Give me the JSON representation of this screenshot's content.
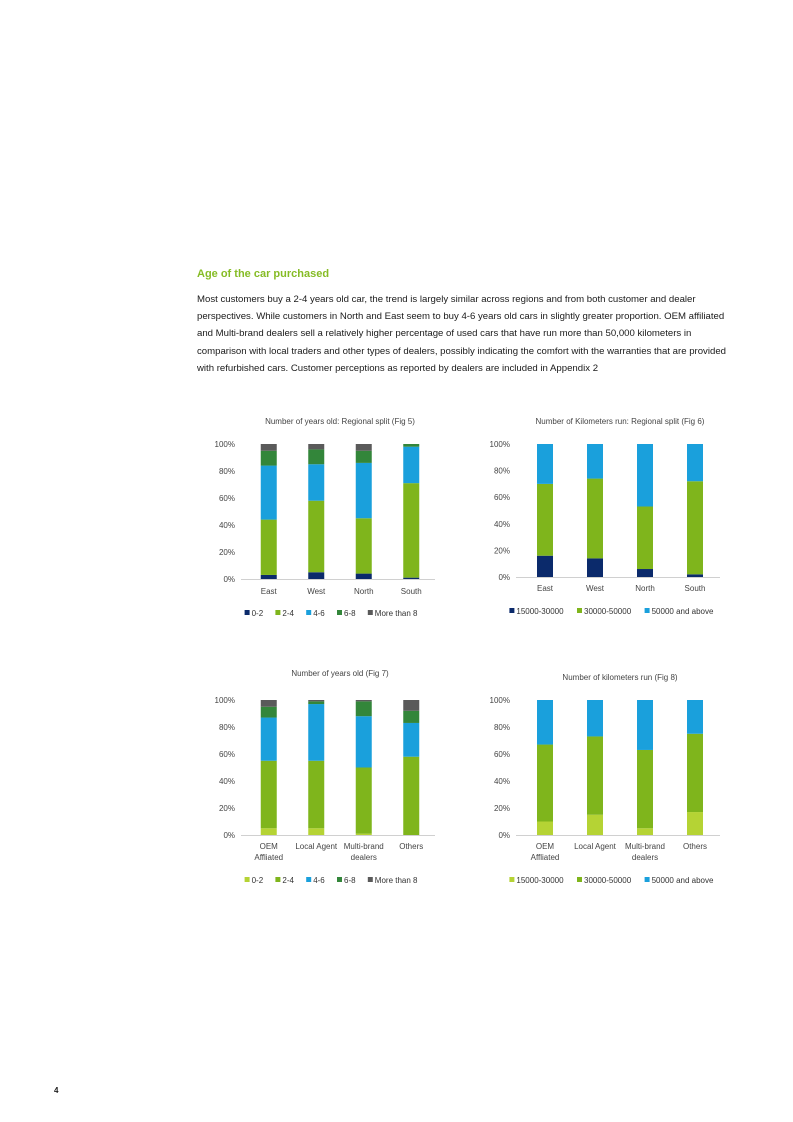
{
  "document": {
    "section_title": "Age of the car purchased",
    "paragraph": "Most customers buy a 2-4 years old car, the trend is largely similar across regions and from both customer and dealer perspectives. While customers in North and East seem to buy 4-6 years old cars in slightly greater proportion. OEM affiliated and Multi-brand dealers sell a relatively higher percentage of used cars that have run more than 50,000 kilometers in comparison with local traders and other types of dealers, possibly indicating the comfort with the warranties that are provided with refurbished cars. Customer perceptions as reported by dealers are included in Appendix 2",
    "page_number": "4"
  },
  "chart_data": [
    {
      "type": "bar",
      "stacked": true,
      "title": "Number of years old: Regional split (Fig 5)",
      "categories": [
        "East",
        "West",
        "North",
        "South"
      ],
      "y_ticks": [
        "0%",
        "20%",
        "40%",
        "60%",
        "80%",
        "100%"
      ],
      "ylim": [
        0,
        100
      ],
      "legend_position": "bottom",
      "series": [
        {
          "name": "0-2",
          "color": "#0b2a6b",
          "values": [
            3,
            5,
            4,
            1
          ]
        },
        {
          "name": "2-4",
          "color": "#7fb51c",
          "values": [
            41,
            53,
            41,
            70
          ]
        },
        {
          "name": "4-6",
          "color": "#1aa0dc",
          "values": [
            40,
            27,
            41,
            27
          ]
        },
        {
          "name": "6-8",
          "color": "#33863a",
          "values": [
            11,
            11,
            9,
            2
          ]
        },
        {
          "name": "More than 8",
          "color": "#5a5a5a",
          "values": [
            5,
            4,
            5,
            0
          ]
        }
      ]
    },
    {
      "type": "bar",
      "stacked": true,
      "title": "Number of Kilometers run: Regional split (Fig 6)",
      "categories": [
        "East",
        "West",
        "North",
        "South"
      ],
      "y_ticks": [
        "0%",
        "20%",
        "40%",
        "60%",
        "80%",
        "100%"
      ],
      "ylim": [
        0,
        100
      ],
      "legend_position": "bottom",
      "series": [
        {
          "name": "15000-30000",
          "color": "#0b2a6b",
          "values": [
            16,
            14,
            6,
            2
          ]
        },
        {
          "name": "30000-50000",
          "color": "#7fb51c",
          "values": [
            54,
            60,
            47,
            70
          ]
        },
        {
          "name": "50000 and above",
          "color": "#1aa0dc",
          "values": [
            30,
            26,
            47,
            28
          ]
        }
      ]
    },
    {
      "type": "bar",
      "stacked": true,
      "title": "Number of years old (Fig 7)",
      "categories": [
        [
          "OEM",
          "Affliated"
        ],
        [
          "Local Agent"
        ],
        [
          "Multi-brand",
          "dealers"
        ],
        [
          "Others"
        ]
      ],
      "y_ticks": [
        "0%",
        "20%",
        "40%",
        "60%",
        "80%",
        "100%"
      ],
      "ylim": [
        0,
        100
      ],
      "legend_position": "bottom",
      "series": [
        {
          "name": "0-2",
          "color": "#b5d334",
          "values": [
            5,
            5,
            1,
            0
          ]
        },
        {
          "name": "2-4",
          "color": "#7fb51c",
          "values": [
            50,
            50,
            49,
            58
          ]
        },
        {
          "name": "4-6",
          "color": "#1aa0dc",
          "values": [
            32,
            42,
            38,
            25
          ]
        },
        {
          "name": "6-8",
          "color": "#33863a",
          "values": [
            8,
            2,
            11,
            9
          ]
        },
        {
          "name": "More than 8",
          "color": "#5a5a5a",
          "values": [
            5,
            1,
            1,
            8
          ]
        }
      ]
    },
    {
      "type": "bar",
      "stacked": true,
      "title": "Number of kilometers run (Fig 8)",
      "categories": [
        [
          "OEM",
          "Affliated"
        ],
        [
          "Local Agent"
        ],
        [
          "Multi-brand",
          "dealers"
        ],
        [
          "Others"
        ]
      ],
      "y_ticks": [
        "0%",
        "20%",
        "40%",
        "60%",
        "80%",
        "100%"
      ],
      "ylim": [
        0,
        100
      ],
      "legend_position": "bottom",
      "series": [
        {
          "name": "15000-30000",
          "color": "#b5d334",
          "values": [
            10,
            15,
            5,
            17
          ]
        },
        {
          "name": "30000-50000",
          "color": "#7fb51c",
          "values": [
            57,
            58,
            58,
            58
          ]
        },
        {
          "name": "50000 and above",
          "color": "#1aa0dc",
          "values": [
            33,
            27,
            37,
            25
          ]
        }
      ]
    }
  ]
}
